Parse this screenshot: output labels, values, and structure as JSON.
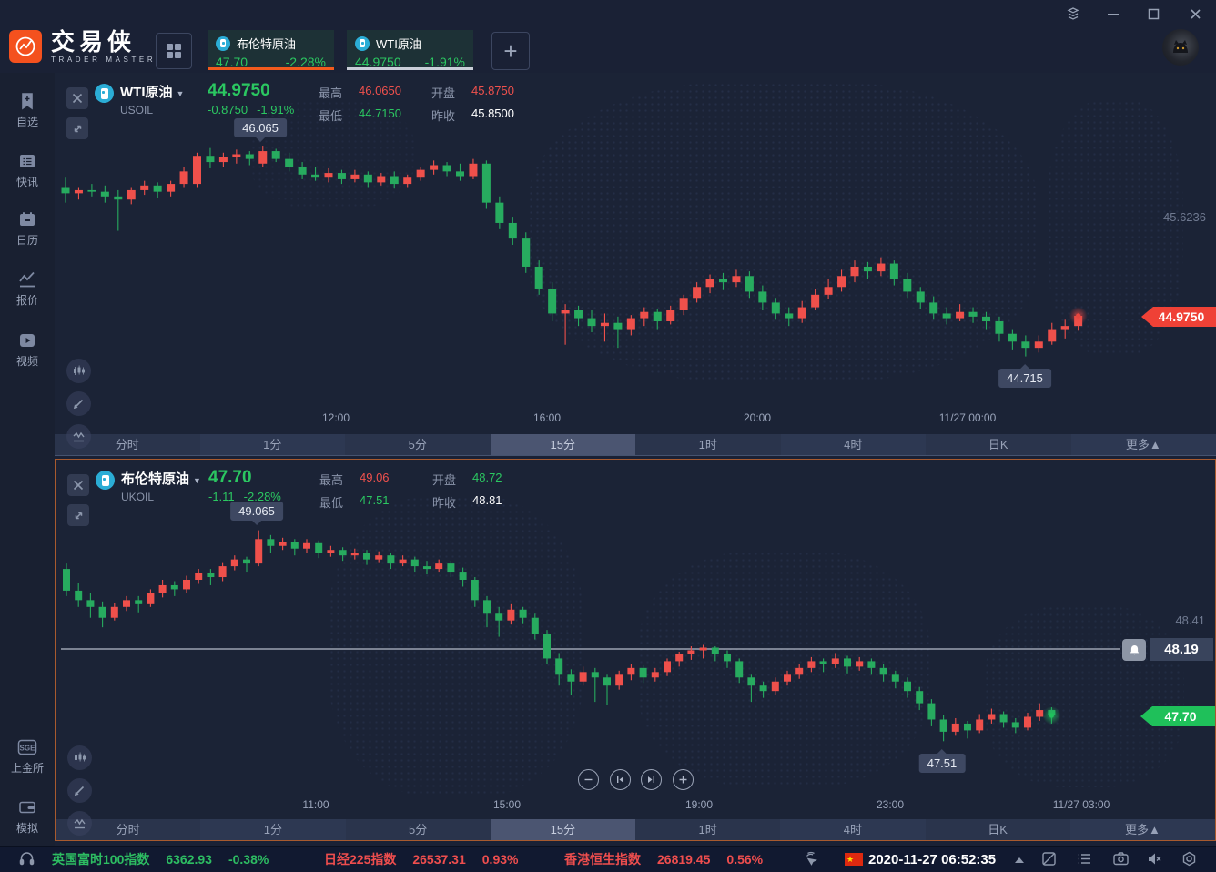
{
  "header": {
    "brand": "交易侠",
    "brand_sub": "TRADER MASTER",
    "tabs": [
      {
        "name": "布伦特原油",
        "price": "47.70",
        "pct": "-2.28%"
      },
      {
        "name": "WTI原油",
        "price": "44.9750",
        "pct": "-1.91%"
      }
    ]
  },
  "sidebar": {
    "items": [
      "自选",
      "快讯",
      "日历",
      "报价",
      "视频"
    ],
    "bottom": [
      "上金所",
      "模拟"
    ],
    "sge_text": "SGE"
  },
  "timeframes": [
    "分时",
    "1分",
    "5分",
    "15分",
    "1时",
    "4时",
    "日K",
    "更多▲"
  ],
  "selected_timeframe": "15分",
  "panels": [
    {
      "name": "WTI原油",
      "code": "USOIL",
      "price": "44.9750",
      "change": "-0.8750",
      "pct": "-1.91%",
      "high_label": "最高",
      "high": "46.0650",
      "low_label": "最低",
      "low": "44.7150",
      "open_label": "开盘",
      "open": "45.8750",
      "prev_label": "昨收",
      "prev": "45.8500",
      "scale_label": "45.6236",
      "tag": "44.9750",
      "tip_high": "46.065",
      "tip_low": "44.715",
      "times": [
        "12:00",
        "16:00",
        "20:00",
        "11/27 00:00"
      ]
    },
    {
      "name": "布伦特原油",
      "code": "UKOIL",
      "price": "47.70",
      "change": "-1.11",
      "pct": "-2.28%",
      "high_label": "最高",
      "high": "49.06",
      "low_label": "最低",
      "low": "47.51",
      "open_label": "开盘",
      "open": "48.72",
      "prev_label": "昨收",
      "prev": "48.81",
      "scale_label": "48.41",
      "tag": "47.70",
      "alert": "48.19",
      "tip_high": "49.065",
      "tip_low": "47.51",
      "times": [
        "11:00",
        "15:00",
        "19:00",
        "23:00",
        "11/27 03:00"
      ]
    }
  ],
  "status": {
    "indices": [
      {
        "name": "英国富时100指数",
        "value": "6362.93",
        "pct": "-0.38%",
        "dir": "down"
      },
      {
        "name": "日经225指数",
        "value": "26537.31",
        "pct": "0.93%",
        "dir": "up"
      },
      {
        "name": "香港恒生指数",
        "value": "26819.45",
        "pct": "0.56%",
        "dir": "up"
      }
    ],
    "datetime": "2020-11-27 06:52:35"
  },
  "colors": {
    "up_candle": "#ef504b",
    "down_candle": "#27ab5f",
    "price_line_red": "#e8463f",
    "price_line_green": "#1fc25c",
    "alert_line": "#dbe1ed",
    "accent_orange": "#f25b1d",
    "text_green": "#2bc761",
    "text_red": "#f0514d"
  },
  "chart_data": [
    {
      "type": "candlestick",
      "title": "WTI原油",
      "symbol": "USOIL",
      "timeframe": "15分",
      "x_labels": [
        "12:00",
        "16:00",
        "20:00",
        "11/27 00:00"
      ],
      "current_price": 44.975,
      "session_high": 46.065,
      "session_low": 44.715,
      "y_range": [
        44.6,
        46.2
      ],
      "candles": [
        [
          45.8,
          45.86,
          45.7,
          45.76
        ],
        [
          45.76,
          45.8,
          45.72,
          45.78
        ],
        [
          45.78,
          45.82,
          45.74,
          45.77
        ],
        [
          45.77,
          45.81,
          45.7,
          45.74
        ],
        [
          45.74,
          45.78,
          45.52,
          45.72
        ],
        [
          45.72,
          45.8,
          45.69,
          45.78
        ],
        [
          45.78,
          45.84,
          45.75,
          45.81
        ],
        [
          45.81,
          45.83,
          45.73,
          45.77
        ],
        [
          45.77,
          45.84,
          45.74,
          45.82
        ],
        [
          45.82,
          45.93,
          45.8,
          45.9
        ],
        [
          45.82,
          46.02,
          45.8,
          46.0
        ],
        [
          46.0,
          46.05,
          45.92,
          45.96
        ],
        [
          45.96,
          46.02,
          45.93,
          45.99
        ],
        [
          45.99,
          46.04,
          45.95,
          46.01
        ],
        [
          46.01,
          46.03,
          45.94,
          45.98
        ],
        [
          45.95,
          46.065,
          45.93,
          46.03
        ],
        [
          46.03,
          46.045,
          45.96,
          45.98
        ],
        [
          45.98,
          46.02,
          45.9,
          45.93
        ],
        [
          45.93,
          45.96,
          45.85,
          45.88
        ],
        [
          45.88,
          45.93,
          45.84,
          45.86
        ],
        [
          45.86,
          45.92,
          45.83,
          45.89
        ],
        [
          45.89,
          45.91,
          45.82,
          45.85
        ],
        [
          45.85,
          45.91,
          45.83,
          45.88
        ],
        [
          45.88,
          45.9,
          45.8,
          45.83
        ],
        [
          45.83,
          45.89,
          45.81,
          45.87
        ],
        [
          45.87,
          45.9,
          45.79,
          45.82
        ],
        [
          45.82,
          45.88,
          45.8,
          45.86
        ],
        [
          45.86,
          45.93,
          45.84,
          45.91
        ],
        [
          45.91,
          45.97,
          45.88,
          45.94
        ],
        [
          45.94,
          45.96,
          45.87,
          45.9
        ],
        [
          45.9,
          45.95,
          45.84,
          45.87
        ],
        [
          45.87,
          45.98,
          45.85,
          45.95
        ],
        [
          45.95,
          45.97,
          45.66,
          45.7
        ],
        [
          45.7,
          45.74,
          45.53,
          45.57
        ],
        [
          45.57,
          45.61,
          45.43,
          45.47
        ],
        [
          45.47,
          45.51,
          45.25,
          45.29
        ],
        [
          45.29,
          45.33,
          45.11,
          45.15
        ],
        [
          45.15,
          45.19,
          44.94,
          44.99
        ],
        [
          44.99,
          45.05,
          44.79,
          45.01
        ],
        [
          45.01,
          45.04,
          44.91,
          44.96
        ],
        [
          44.96,
          45.01,
          44.87,
          44.91
        ],
        [
          44.91,
          44.99,
          44.81,
          44.93
        ],
        [
          44.93,
          44.97,
          44.77,
          44.89
        ],
        [
          44.89,
          44.98,
          44.85,
          44.96
        ],
        [
          44.96,
          45.03,
          44.91,
          45.0
        ],
        [
          45.0,
          45.02,
          44.89,
          44.94
        ],
        [
          44.94,
          45.04,
          44.92,
          45.01
        ],
        [
          45.01,
          45.11,
          44.98,
          45.09
        ],
        [
          45.09,
          45.19,
          45.06,
          45.16
        ],
        [
          45.16,
          45.24,
          45.12,
          45.21
        ],
        [
          45.21,
          45.25,
          45.14,
          45.19
        ],
        [
          45.19,
          45.27,
          45.16,
          45.23
        ],
        [
          45.23,
          45.26,
          45.09,
          45.13
        ],
        [
          45.13,
          45.17,
          45.01,
          45.06
        ],
        [
          45.06,
          45.09,
          44.95,
          44.99
        ],
        [
          44.99,
          45.03,
          44.91,
          44.96
        ],
        [
          44.96,
          45.07,
          44.93,
          45.03
        ],
        [
          45.03,
          45.15,
          45.01,
          45.11
        ],
        [
          45.11,
          45.21,
          45.08,
          45.16
        ],
        [
          45.16,
          45.27,
          45.13,
          45.23
        ],
        [
          45.23,
          45.33,
          45.19,
          45.29
        ],
        [
          45.29,
          45.32,
          45.21,
          45.26
        ],
        [
          45.26,
          45.35,
          45.23,
          45.31
        ],
        [
          45.31,
          45.33,
          45.17,
          45.21
        ],
        [
          45.21,
          45.25,
          45.09,
          45.13
        ],
        [
          45.13,
          45.16,
          45.02,
          45.06
        ],
        [
          45.06,
          45.1,
          44.95,
          44.99
        ],
        [
          44.99,
          45.03,
          44.92,
          44.96
        ],
        [
          44.96,
          45.05,
          44.94,
          45.0
        ],
        [
          45.0,
          45.03,
          44.93,
          44.97
        ],
        [
          44.97,
          45.0,
          44.89,
          44.94
        ],
        [
          44.94,
          44.97,
          44.81,
          44.86
        ],
        [
          44.86,
          44.89,
          44.76,
          44.81
        ],
        [
          44.81,
          44.85,
          44.715,
          44.77
        ],
        [
          44.77,
          44.85,
          44.74,
          44.81
        ],
        [
          44.81,
          44.93,
          44.79,
          44.89
        ],
        [
          44.89,
          44.95,
          44.83,
          44.91
        ],
        [
          44.91,
          44.99,
          44.88,
          44.975
        ]
      ]
    },
    {
      "type": "candlestick",
      "title": "布伦特原油",
      "symbol": "UKOIL",
      "timeframe": "15分",
      "x_labels": [
        "11:00",
        "15:00",
        "19:00",
        "23:00",
        "11/27 03:00"
      ],
      "current_price": 47.7,
      "alert_price": 48.19,
      "session_high": 49.065,
      "session_low": 47.51,
      "y_range": [
        47.35,
        49.2
      ],
      "candles": [
        [
          48.78,
          48.82,
          48.58,
          48.62
        ],
        [
          48.62,
          48.68,
          48.5,
          48.55
        ],
        [
          48.55,
          48.6,
          48.42,
          48.5
        ],
        [
          48.5,
          48.54,
          48.35,
          48.42
        ],
        [
          48.42,
          48.53,
          48.4,
          48.5
        ],
        [
          48.5,
          48.58,
          48.47,
          48.55
        ],
        [
          48.55,
          48.58,
          48.46,
          48.52
        ],
        [
          48.52,
          48.63,
          48.5,
          48.6
        ],
        [
          48.6,
          48.7,
          48.57,
          48.66
        ],
        [
          48.66,
          48.69,
          48.58,
          48.63
        ],
        [
          48.63,
          48.73,
          48.6,
          48.7
        ],
        [
          48.7,
          48.78,
          48.67,
          48.75
        ],
        [
          48.75,
          48.78,
          48.66,
          48.72
        ],
        [
          48.72,
          48.83,
          48.69,
          48.8
        ],
        [
          48.8,
          48.88,
          48.77,
          48.85
        ],
        [
          48.85,
          48.87,
          48.76,
          48.82
        ],
        [
          48.82,
          49.065,
          48.8,
          49.0
        ],
        [
          49.0,
          49.03,
          48.9,
          48.95
        ],
        [
          48.95,
          49.01,
          48.92,
          48.98
        ],
        [
          48.98,
          49.0,
          48.88,
          48.93
        ],
        [
          48.93,
          49.0,
          48.9,
          48.97
        ],
        [
          48.97,
          48.99,
          48.86,
          48.9
        ],
        [
          48.9,
          48.95,
          48.87,
          48.92
        ],
        [
          48.92,
          48.94,
          48.84,
          48.88
        ],
        [
          48.88,
          48.93,
          48.85,
          48.9
        ],
        [
          48.9,
          48.92,
          48.81,
          48.85
        ],
        [
          48.85,
          48.91,
          48.83,
          48.88
        ],
        [
          48.88,
          48.9,
          48.78,
          48.82
        ],
        [
          48.82,
          48.88,
          48.8,
          48.85
        ],
        [
          48.85,
          48.87,
          48.76,
          48.8
        ],
        [
          48.8,
          48.84,
          48.74,
          48.78
        ],
        [
          48.78,
          48.85,
          48.76,
          48.82
        ],
        [
          48.82,
          48.84,
          48.72,
          48.76
        ],
        [
          48.76,
          48.79,
          48.65,
          48.7
        ],
        [
          48.7,
          48.72,
          48.5,
          48.55
        ],
        [
          48.55,
          48.58,
          48.35,
          48.45
        ],
        [
          48.45,
          48.5,
          48.28,
          48.4
        ],
        [
          48.4,
          48.52,
          48.37,
          48.48
        ],
        [
          48.48,
          48.5,
          48.38,
          48.42
        ],
        [
          48.42,
          48.45,
          48.26,
          48.3
        ],
        [
          48.3,
          48.33,
          48.08,
          48.12
        ],
        [
          48.12,
          48.16,
          47.92,
          48.0
        ],
        [
          48.0,
          48.04,
          47.85,
          47.95
        ],
        [
          47.95,
          48.06,
          47.92,
          48.02
        ],
        [
          48.02,
          48.05,
          47.8,
          47.98
        ],
        [
          47.98,
          48.0,
          47.78,
          47.92
        ],
        [
          47.92,
          48.03,
          47.89,
          48.0
        ],
        [
          48.0,
          48.08,
          47.96,
          48.05
        ],
        [
          48.05,
          48.07,
          47.94,
          47.98
        ],
        [
          47.98,
          48.05,
          47.95,
          48.02
        ],
        [
          48.02,
          48.12,
          47.99,
          48.1
        ],
        [
          48.1,
          48.17,
          48.06,
          48.15
        ],
        [
          48.15,
          48.21,
          48.11,
          48.18
        ],
        [
          48.18,
          48.22,
          48.12,
          48.2
        ],
        [
          48.2,
          48.21,
          48.1,
          48.15
        ],
        [
          48.15,
          48.18,
          48.05,
          48.1
        ],
        [
          48.1,
          48.12,
          47.94,
          47.98
        ],
        [
          47.98,
          48.0,
          47.8,
          47.92
        ],
        [
          47.92,
          47.95,
          47.83,
          47.88
        ],
        [
          47.88,
          47.98,
          47.85,
          47.95
        ],
        [
          47.95,
          48.03,
          47.92,
          48.0
        ],
        [
          48.0,
          48.08,
          47.97,
          48.05
        ],
        [
          48.05,
          48.13,
          48.02,
          48.1
        ],
        [
          48.1,
          48.12,
          48.02,
          48.08
        ],
        [
          48.08,
          48.16,
          48.05,
          48.12
        ],
        [
          48.12,
          48.14,
          48.01,
          48.06
        ],
        [
          48.06,
          48.13,
          48.03,
          48.1
        ],
        [
          48.1,
          48.12,
          48.0,
          48.05
        ],
        [
          48.05,
          48.08,
          47.95,
          48.0
        ],
        [
          48.0,
          48.03,
          47.9,
          47.95
        ],
        [
          47.95,
          47.98,
          47.83,
          47.88
        ],
        [
          47.88,
          47.91,
          47.74,
          47.79
        ],
        [
          47.79,
          47.82,
          47.62,
          47.67
        ],
        [
          47.67,
          47.7,
          47.51,
          47.58
        ],
        [
          47.58,
          47.68,
          47.55,
          47.64
        ],
        [
          47.64,
          47.66,
          47.53,
          47.59
        ],
        [
          47.59,
          47.71,
          47.57,
          47.67
        ],
        [
          47.67,
          47.75,
          47.64,
          47.71
        ],
        [
          47.71,
          47.73,
          47.61,
          47.65
        ],
        [
          47.65,
          47.68,
          47.57,
          47.61
        ],
        [
          47.61,
          47.72,
          47.59,
          47.69
        ],
        [
          47.69,
          47.79,
          47.66,
          47.74
        ],
        [
          47.74,
          47.76,
          47.64,
          47.7
        ]
      ]
    }
  ]
}
